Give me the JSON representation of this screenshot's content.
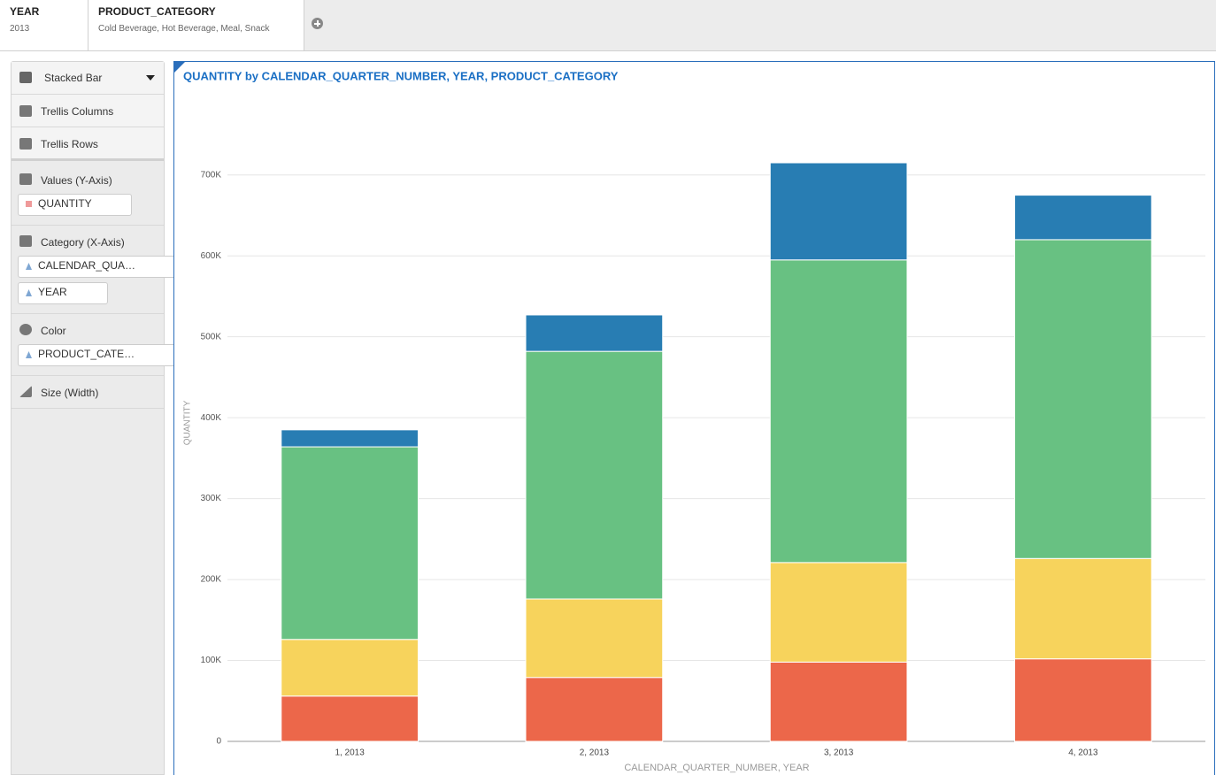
{
  "filter_bar": {
    "filters": [
      {
        "name": "YEAR",
        "value": "2013"
      },
      {
        "name": "PRODUCT_CATEGORY",
        "value": "Cold Beverage, Hot Beverage, Meal, Snack"
      }
    ]
  },
  "sidebar": {
    "chart_type": "Stacked Bar",
    "layout_options": [
      "Trellis Columns",
      "Trellis Rows"
    ],
    "sections": [
      {
        "label": "Values (Y-Axis)",
        "fields": [
          "QUANTITY"
        ]
      },
      {
        "label": "Category (X-Axis)",
        "fields": [
          "CALENDAR_QUA…",
          "YEAR"
        ]
      },
      {
        "label": "Color",
        "fields": [
          "PRODUCT_CATE…"
        ]
      },
      {
        "label": "Size (Width)"
      }
    ]
  },
  "chart_data": {
    "type": "bar",
    "stacked": true,
    "title": "QUANTITY by CALENDAR_QUARTER_NUMBER, YEAR, PRODUCT_CATEGORY",
    "x_label": "CALENDAR_QUARTER_NUMBER, YEAR",
    "y_label": "QUANTITY",
    "categories": [
      "1, 2013",
      "2, 2013",
      "3, 2013",
      "4, 2013"
    ],
    "series": [
      {
        "color": "#ec674a",
        "values": [
          56000,
          79000,
          98000,
          102000
        ]
      },
      {
        "color": "#f7d35c",
        "values": [
          70000,
          97000,
          123000,
          124000
        ]
      },
      {
        "color": "#68c182",
        "values": [
          238000,
          306000,
          374000,
          394000
        ]
      },
      {
        "color": "#287db3",
        "values": [
          21000,
          45000,
          120000,
          55000
        ]
      }
    ],
    "ylim": [
      0,
      750000
    ],
    "yticks": [
      0,
      {
        "value": 100000,
        "label": "100K"
      },
      {
        "value": 200000,
        "label": "200K"
      },
      {
        "value": 300000,
        "label": "300K"
      },
      {
        "value": 400000,
        "label": "400K"
      },
      {
        "value": 500000,
        "label": "500K"
      },
      {
        "value": 600000,
        "label": "600K"
      },
      {
        "value": 700000,
        "label": "700K"
      }
    ],
    "grid": true
  }
}
